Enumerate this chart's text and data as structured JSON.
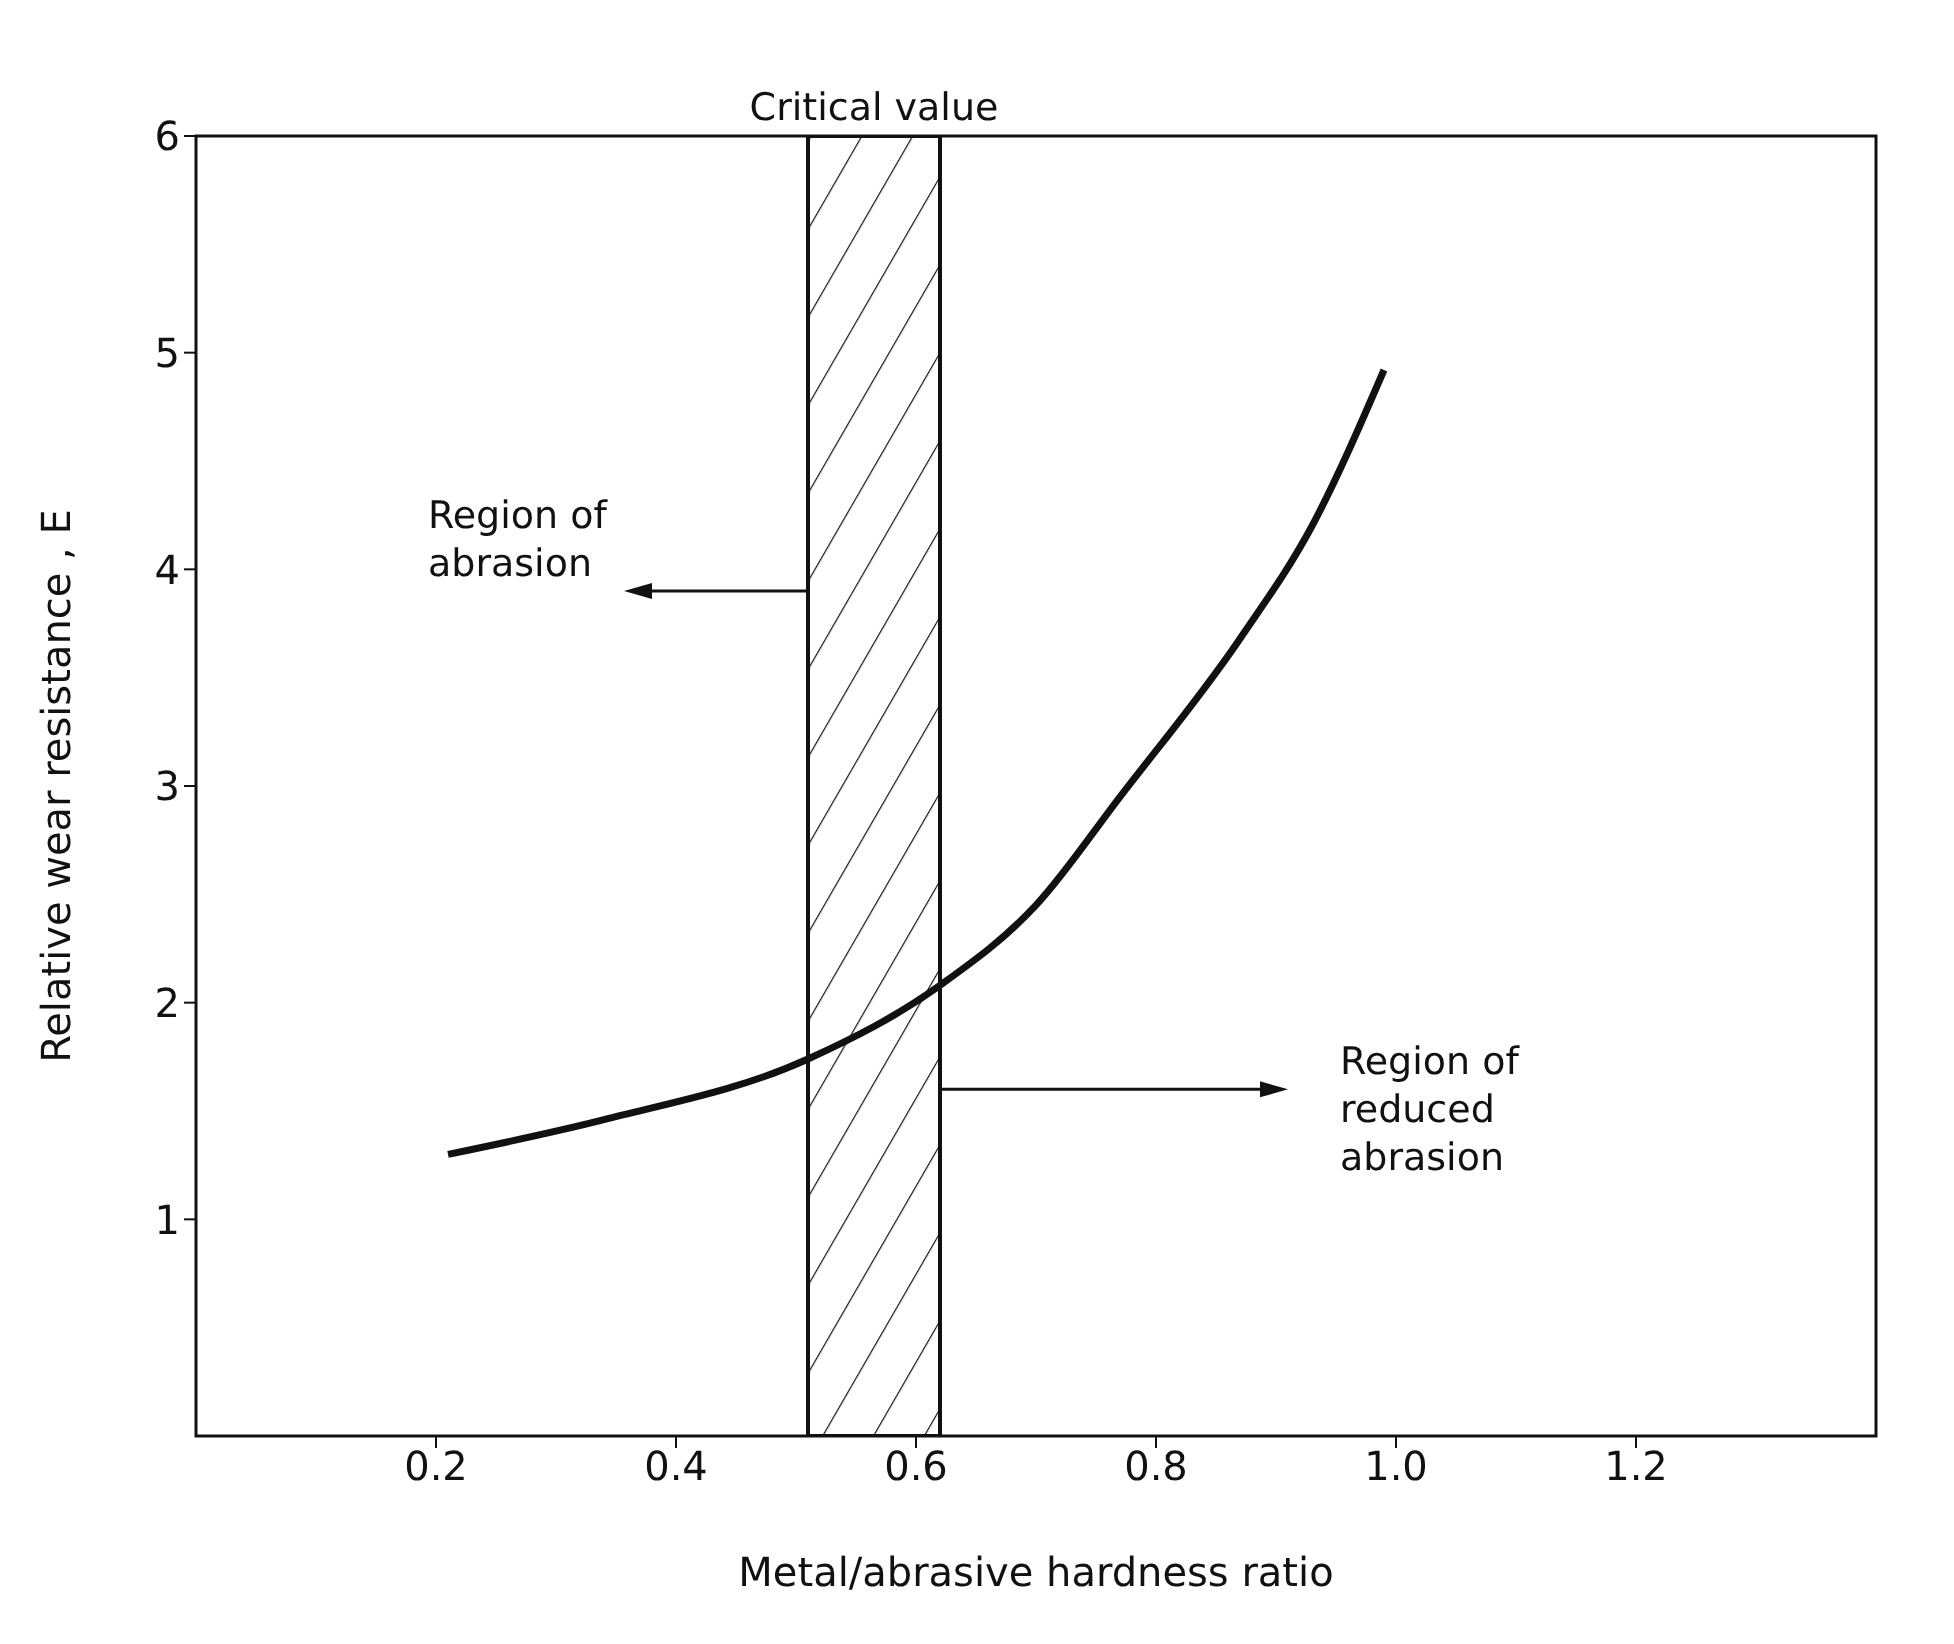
{
  "chart_data": {
    "type": "line",
    "xlabel": "Metal/abrasive hardness ratio",
    "ylabel": "Relative wear resistance , E",
    "x": [
      0.21,
      0.34,
      0.51,
      0.62,
      0.7,
      0.77,
      0.87,
      0.93,
      0.99
    ],
    "series": [
      {
        "color": "#111111",
        "values": [
          1.3,
          1.46,
          1.74,
          2.08,
          2.45,
          2.95,
          3.68,
          4.2,
          4.92
        ]
      }
    ],
    "xlim": [
      0,
      1.4
    ],
    "ylim": [
      0,
      6
    ],
    "xticks": [
      0.2,
      0.4,
      0.6,
      0.8,
      {
        "value": 1.0,
        "label": "1.0"
      },
      1.2
    ],
    "yticks": [
      1,
      2,
      3,
      4,
      5,
      6
    ],
    "bands": [
      {
        "axis": "x",
        "from": 0.51,
        "to": 0.62,
        "label": "Critical value",
        "color": "#111111"
      }
    ],
    "annotations": [
      "Region of abrasion",
      "Region of reduced abrasion"
    ],
    "grid": false,
    "legend": false,
    "marker": "none",
    "line_style": "solid"
  }
}
